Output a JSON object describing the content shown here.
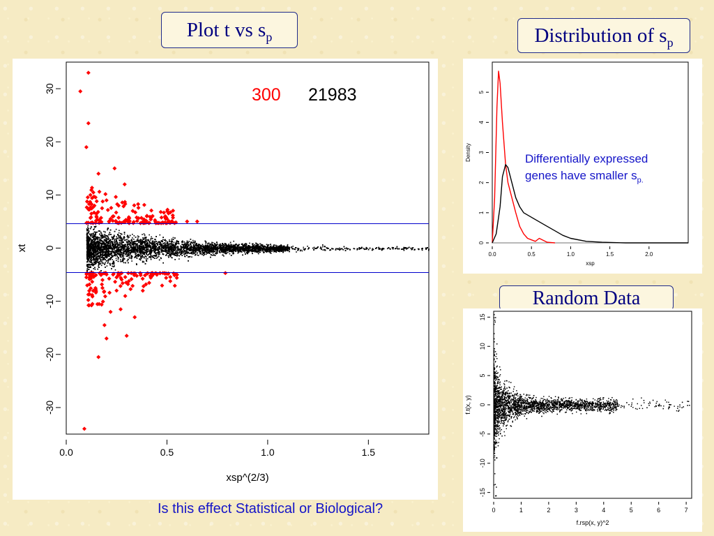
{
  "slide": {
    "title_main_text": "Plot t vs s",
    "title_main_sub": "p",
    "title_dist_text": "Distribution of s",
    "title_dist_sub": "p",
    "title_random": "Random Data",
    "annotation_line1": "Differentially expressed",
    "annotation_line2_text": "genes have smaller s",
    "annotation_line2_sub": "p.",
    "bottom_question": "Is this effect Statistical or Biological?"
  },
  "colors": {
    "significant": "#ff0000",
    "points": "#000000",
    "threshold_lines": "#0000cc",
    "text_blue": "#1414c8",
    "title_text": "#000080"
  },
  "chart_data": [
    {
      "type": "scatter",
      "xlabel": "xsp^(2/3)",
      "ylabel": "xt",
      "xlim": [
        0,
        1.8
      ],
      "ylim": [
        -35,
        35
      ],
      "xticks": [
        "0.0",
        "0.5",
        "1.0",
        "1.5"
      ],
      "xtick_values": [
        0,
        0.5,
        1.0,
        1.5
      ],
      "yticks": [
        "-30",
        "-20",
        "-10",
        "0",
        "10",
        "20",
        "30"
      ],
      "ytick_values": [
        -30,
        -20,
        -10,
        0,
        10,
        20,
        30
      ],
      "annotation_red": "300",
      "annotation_black": "21983",
      "threshold_lines": [
        4.6,
        -4.6
      ],
      "series": [
        {
          "name": "",
          "color": "#000000",
          "description": "cloud of non-significant genes",
          "points": [
            [
              0.12,
              0.5
            ],
            [
              0.2,
              -1.5
            ],
            [
              0.3,
              1.8
            ],
            [
              0.4,
              -0.8
            ],
            [
              0.5,
              1.2
            ],
            [
              0.6,
              -1.0
            ],
            [
              0.7,
              0.6
            ],
            [
              0.8,
              -0.5
            ],
            [
              0.9,
              0.4
            ],
            [
              1.0,
              -0.3
            ],
            [
              1.1,
              0.2
            ],
            [
              1.2,
              0.1
            ],
            [
              1.3,
              0.2
            ],
            [
              1.4,
              0.0
            ],
            [
              1.5,
              0.1
            ],
            [
              1.6,
              0.0
            ],
            [
              1.7,
              0.1
            ],
            [
              1.78,
              0.0
            ]
          ]
        },
        {
          "name": "",
          "color": "#ff0000",
          "description": "significant genes",
          "points": [
            [
              0.11,
              33
            ],
            [
              0.07,
              29.5
            ],
            [
              0.11,
              23.5
            ],
            [
              0.1,
              19
            ],
            [
              0.16,
              14
            ],
            [
              0.24,
              15
            ],
            [
              0.29,
              12
            ],
            [
              0.09,
              -34
            ],
            [
              0.16,
              -20.5
            ],
            [
              0.2,
              -17
            ],
            [
              0.3,
              -16.5
            ],
            [
              0.34,
              -13
            ],
            [
              0.19,
              -14.5
            ],
            [
              0.27,
              -11.5
            ],
            [
              0.22,
              -12
            ],
            [
              0.13,
              -10.5
            ],
            [
              0.18,
              -7.5
            ],
            [
              0.25,
              -8
            ],
            [
              0.12,
              10
            ],
            [
              0.14,
              8
            ],
            [
              0.2,
              9
            ],
            [
              0.26,
              8
            ],
            [
              0.33,
              7
            ],
            [
              0.4,
              6
            ],
            [
              0.5,
              5.5
            ],
            [
              0.6,
              5
            ],
            [
              0.15,
              6
            ],
            [
              0.22,
              5.5
            ],
            [
              0.3,
              5.2
            ],
            [
              0.1,
              -5.5
            ],
            [
              0.18,
              -6
            ],
            [
              0.25,
              -5.5
            ],
            [
              0.35,
              -5.2
            ],
            [
              0.45,
              -5
            ],
            [
              0.55,
              -5
            ],
            [
              0.79,
              -4.7
            ],
            [
              0.65,
              5
            ]
          ]
        }
      ]
    },
    {
      "type": "line",
      "xlabel": "xsp",
      "ylabel": "Density",
      "xlim": [
        0,
        2.5
      ],
      "ylim": [
        0,
        6
      ],
      "xticks": [
        "0.0",
        "0.5",
        "1.0",
        "1.5",
        "2.0"
      ],
      "xtick_values": [
        0,
        0.5,
        1.0,
        1.5,
        2.0
      ],
      "yticks": [
        "0",
        "1",
        "2",
        "3",
        "4",
        "5"
      ],
      "ytick_values": [
        0,
        1,
        2,
        3,
        4,
        5
      ],
      "series": [
        {
          "name": "",
          "color": "#ff0000",
          "x": [
            0.0,
            0.03,
            0.06,
            0.08,
            0.1,
            0.13,
            0.17,
            0.2,
            0.25,
            0.3,
            0.35,
            0.4,
            0.45,
            0.5,
            0.55,
            0.6,
            0.7,
            0.8
          ],
          "y": [
            0.0,
            1.5,
            4.5,
            5.7,
            5.3,
            4.0,
            2.6,
            2.0,
            1.5,
            1.0,
            0.55,
            0.3,
            0.15,
            0.1,
            0.05,
            0.15,
            0.02,
            0.0
          ]
        },
        {
          "name": "",
          "color": "#000000",
          "x": [
            0.0,
            0.05,
            0.1,
            0.13,
            0.17,
            0.2,
            0.25,
            0.3,
            0.35,
            0.4,
            0.5,
            0.6,
            0.7,
            0.8,
            0.9,
            1.0,
            1.2,
            1.4,
            1.7,
            2.0,
            2.5
          ],
          "y": [
            0.0,
            0.3,
            1.2,
            2.2,
            2.6,
            2.5,
            2.0,
            1.5,
            1.2,
            1.0,
            0.85,
            0.7,
            0.55,
            0.4,
            0.25,
            0.15,
            0.05,
            0.02,
            0.0,
            0.0,
            0.0
          ]
        }
      ]
    },
    {
      "type": "scatter",
      "xlabel": "f.rsp(x, y)^2",
      "ylabel": "f.t(x, y)",
      "xlim": [
        0,
        7.2
      ],
      "ylim": [
        -16,
        16
      ],
      "xticks": [
        "0",
        "1",
        "2",
        "3",
        "4",
        "5",
        "6",
        "7"
      ],
      "xtick_values": [
        0,
        1,
        2,
        3,
        4,
        5,
        6,
        7
      ],
      "yticks": [
        "-15",
        "-10",
        "-5",
        "0",
        "5",
        "10",
        "15"
      ],
      "ytick_values": [
        -15,
        -10,
        -5,
        0,
        5,
        10,
        15
      ],
      "series": [
        {
          "name": "",
          "color": "#000000",
          "description": "random data cloud",
          "points": [
            [
              0.05,
              15
            ],
            [
              0.1,
              10.5
            ],
            [
              0.08,
              -14
            ],
            [
              0.05,
              -15.5
            ],
            [
              0.1,
              8
            ],
            [
              0.1,
              -9
            ],
            [
              0.5,
              2
            ],
            [
              1,
              -1.5
            ],
            [
              2,
              0.8
            ],
            [
              3,
              -0.4
            ],
            [
              4,
              0.2
            ],
            [
              5,
              0.1
            ],
            [
              6,
              0.0
            ],
            [
              7.1,
              0.0
            ]
          ]
        }
      ]
    }
  ]
}
